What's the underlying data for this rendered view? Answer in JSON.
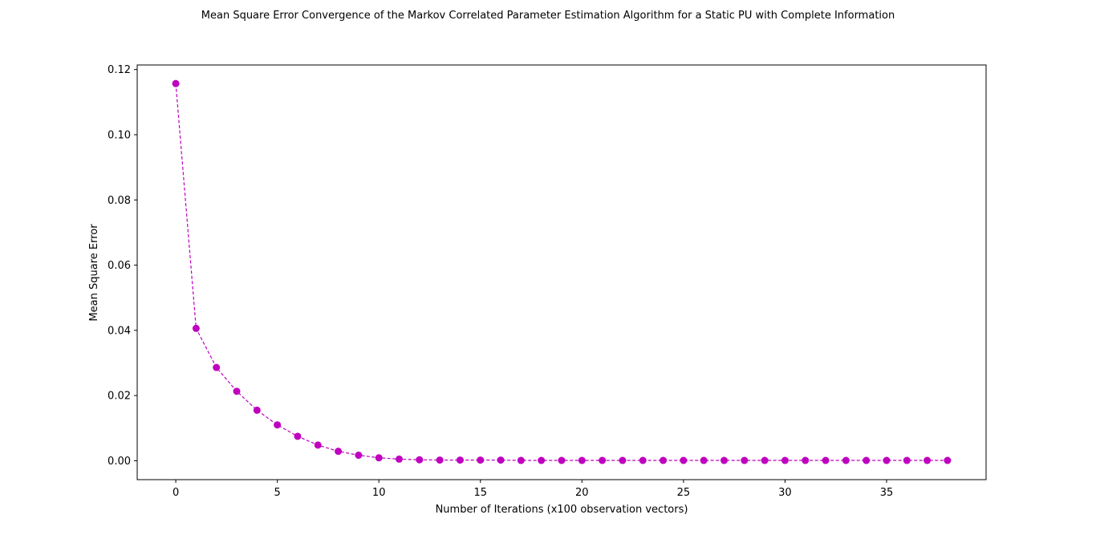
{
  "chart_data": {
    "type": "line",
    "title": "Mean Square Error Convergence of the Markov Correlated Parameter Estimation Algorithm for a Static PU with Complete Information",
    "xlabel": "Number of Iterations (x100 observation vectors)",
    "ylabel": "Mean Square Error",
    "xlim": [
      -1.9,
      39.9
    ],
    "ylim": [
      -0.0058,
      0.1214
    ],
    "xticks": [
      0,
      5,
      10,
      15,
      20,
      25,
      30,
      35
    ],
    "xtick_labels": [
      "0",
      "5",
      "10",
      "15",
      "20",
      "25",
      "30",
      "35"
    ],
    "yticks": [
      0.0,
      0.02,
      0.04,
      0.06,
      0.08,
      0.1,
      0.12
    ],
    "ytick_labels": [
      "0.00",
      "0.02",
      "0.04",
      "0.06",
      "0.08",
      "0.10",
      "0.12"
    ],
    "grid": false,
    "legend": "none",
    "series": [
      {
        "color": "#bf00bf",
        "line_style": "dashed",
        "marker": "circle",
        "x": [
          0,
          1,
          2,
          3,
          4,
          5,
          6,
          7,
          8,
          9,
          10,
          11,
          12,
          13,
          14,
          15,
          16,
          17,
          18,
          19,
          20,
          21,
          22,
          23,
          24,
          25,
          26,
          27,
          28,
          29,
          30,
          31,
          32,
          33,
          34,
          35,
          36,
          37,
          38
        ],
        "y": [
          0.1157,
          0.0406,
          0.0286,
          0.0213,
          0.0155,
          0.011,
          0.0075,
          0.0048,
          0.0029,
          0.0017,
          0.0009,
          0.0005,
          0.0003,
          0.0002,
          0.0002,
          0.0002,
          0.0002,
          0.0001,
          0.0001,
          0.0001,
          0.0001,
          0.0001,
          0.0001,
          0.0001,
          0.0001,
          0.0001,
          0.0001,
          0.0001,
          0.0001,
          0.0001,
          0.0001,
          0.0001,
          0.0001,
          0.0001,
          0.0001,
          0.0001,
          0.0001,
          0.0001,
          0.0001
        ]
      }
    ]
  }
}
